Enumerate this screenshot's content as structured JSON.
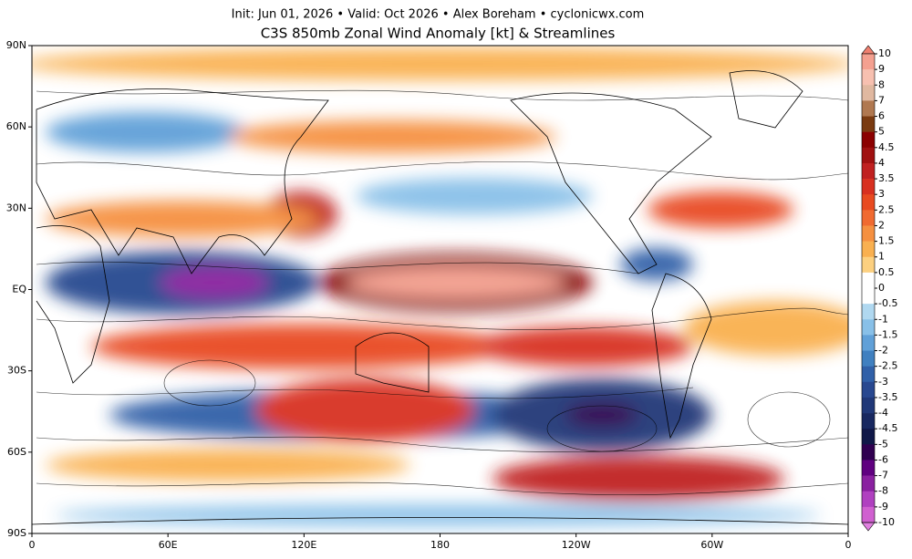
{
  "header": {
    "subtitle": "Init: Jun 01, 2026 • Valid: Oct 2026 • Alex Boreham • cyclonicwx.com",
    "title": "C3S 850mb Zonal Wind Anomaly [kt] & Streamlines"
  },
  "map": {
    "xticks": [
      "0",
      "60E",
      "120E",
      "180",
      "120W",
      "60W",
      "0"
    ],
    "yticks": [
      "90N",
      "60N",
      "30N",
      "EQ",
      "30S",
      "60S",
      "90S"
    ]
  },
  "colorbar": {
    "labels": [
      10,
      9,
      8,
      7,
      6,
      5,
      4.5,
      4,
      3.5,
      3,
      2.5,
      2,
      1.5,
      1,
      0.5,
      0,
      -0.5,
      -1,
      -1.5,
      -2,
      -2.5,
      -3,
      -3.5,
      -4,
      -4.5,
      -5,
      -6,
      -7,
      -8,
      -9,
      -10
    ],
    "colors": [
      "#f08070",
      "#f4a090",
      "#f7c0b0",
      "#e0b8a0",
      "#b07850",
      "#7a3a10",
      "#8b0000",
      "#a01010",
      "#c02020",
      "#d83020",
      "#e84a20",
      "#f06a30",
      "#f59040",
      "#f9b050",
      "#fcd080",
      "#ffffff",
      "#ffffff",
      "#b0d8f0",
      "#88c0e8",
      "#60a0d8",
      "#4080c0",
      "#3060a8",
      "#284890",
      "#203878",
      "#182860",
      "#101848",
      "#300050",
      "#600080",
      "#8a20a0",
      "#b040c0",
      "#d060d0",
      "#e080e0"
    ]
  }
}
